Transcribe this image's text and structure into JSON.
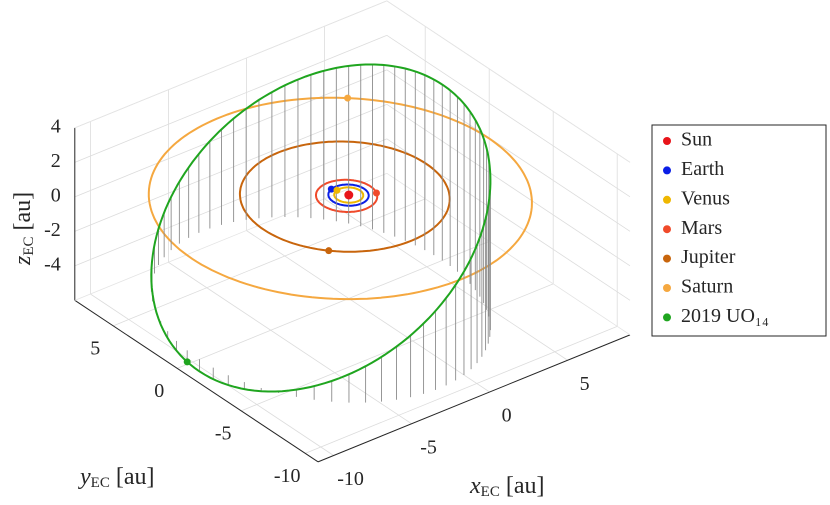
{
  "chart_data": {
    "type": "orbit3d",
    "xlabel": {
      "symbol": "x",
      "sub": "EC",
      "unit": "[au]"
    },
    "ylabel": {
      "symbol": "y",
      "sub": "EC",
      "unit": "[au]"
    },
    "zlabel": {
      "symbol": "z",
      "sub": "EC",
      "unit": "[au]"
    },
    "xlim": [
      -11,
      9
    ],
    "ylim": [
      -11,
      8
    ],
    "zlim": [
      -6,
      4
    ],
    "xticks": [
      -10,
      -5,
      0,
      5
    ],
    "yticks": [
      -10,
      -5,
      0,
      5
    ],
    "zticks": [
      -4,
      -2,
      0,
      2,
      4
    ],
    "grid": true,
    "legend": "right",
    "series": [
      {
        "name": "Sun",
        "color": "#e8141a",
        "a": 0,
        "e": 0,
        "i": 0,
        "node": 0,
        "peri": 0,
        "anomaly": 0
      },
      {
        "name": "Earth",
        "color": "#0a1ee6",
        "a": 1.0,
        "e": 0.017,
        "i": 0,
        "node": 0,
        "peri": 0,
        "anomaly": 110
      },
      {
        "name": "Venus",
        "color": "#efb700",
        "a": 0.72,
        "e": 0.007,
        "i": 0,
        "node": 0,
        "peri": 0,
        "anomaly": 105
      },
      {
        "name": "Mars",
        "color": "#f04a2a",
        "a": 1.52,
        "e": 0.093,
        "i": 0,
        "node": 0,
        "peri": 0,
        "anomaly": 331
      },
      {
        "name": "Jupiter",
        "color": "#c8650c",
        "a": 5.2,
        "e": 0.049,
        "i": 0,
        "node": 0,
        "peri": 0,
        "anomaly": 220
      },
      {
        "name": "Saturn",
        "color": "#f5a840",
        "a": 9.5,
        "e": 0.057,
        "i": 0,
        "node": 0,
        "peri": 0,
        "anomaly": 51
      },
      {
        "name": "2019 UO₁₄",
        "color": "#1fa51f",
        "a": 9.5,
        "e": 0.23,
        "i": 35,
        "node": 270,
        "peri": 90,
        "anomaly": 175,
        "stems": true
      }
    ]
  }
}
